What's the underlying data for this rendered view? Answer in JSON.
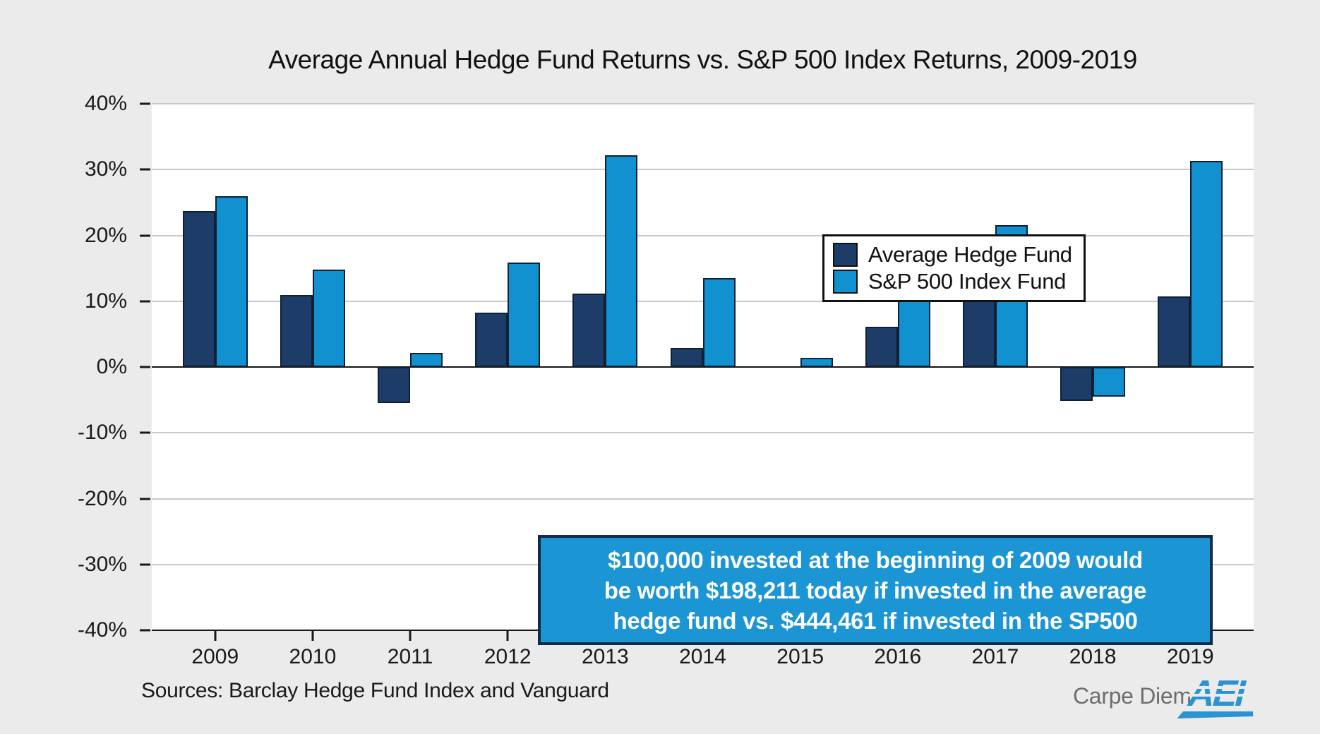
{
  "title": "Average Annual Hedge Fund Returns vs. S&P 500 Index Returns, 2009-2019",
  "annotation": {
    "lines": [
      "$100,000 invested at the beginning of 2009 would",
      "be worth $198,211 today if invested in the average",
      "hedge fund vs. $444,461 if invested in the SP500"
    ]
  },
  "footer": {
    "sources": "Sources: Barclay Hedge Fund Index and Vanguard",
    "brand": "Carpe Diem",
    "logo_text": "AEI"
  },
  "colors": {
    "background": "#ebebeb",
    "plot_background": "#ffffff",
    "gridline": "#c9c9c9",
    "axis": "#1a1a1a",
    "hedge_fund_bar": "#1d3c68",
    "sp500_bar": "#1191d0",
    "bar_outline": "#0d2036",
    "annotation_background": "#1b95d3",
    "annotation_border": "#0e2c49",
    "annotation_text": "#ffffff",
    "brand_gray": "#6e6e6e",
    "logo_blue": "#2a93d1"
  },
  "chart_data": {
    "type": "bar",
    "title": "Average Annual Hedge Fund Returns vs. S&P 500 Index Returns, 2009-2019",
    "categories": [
      "2009",
      "2010",
      "2011",
      "2012",
      "2013",
      "2014",
      "2015",
      "2016",
      "2017",
      "2018",
      "2019"
    ],
    "series": [
      {
        "name": "Average Hedge Fund",
        "color": "#1d3c68",
        "values": [
          23.7,
          10.9,
          -5.5,
          8.3,
          11.1,
          2.9,
          0.0,
          6.1,
          10.7,
          -5.1,
          10.7
        ]
      },
      {
        "name": "S&P 500 Index Fund",
        "color": "#1191d0",
        "values": [
          26.0,
          14.8,
          2.1,
          15.9,
          32.2,
          13.5,
          1.4,
          11.8,
          21.6,
          -4.5,
          31.3
        ]
      }
    ],
    "ylim": [
      -40,
      40
    ],
    "yticks": [
      40,
      30,
      20,
      10,
      0,
      -10,
      -20,
      -30,
      -40
    ],
    "ytick_labels": [
      "40%",
      "30%",
      "20%",
      "10%",
      "0%",
      "-10%",
      "-20%",
      "-30%",
      "-40%"
    ],
    "ylabel_format": "percent",
    "grid": true,
    "legend_position": "upper-center-inside"
  }
}
